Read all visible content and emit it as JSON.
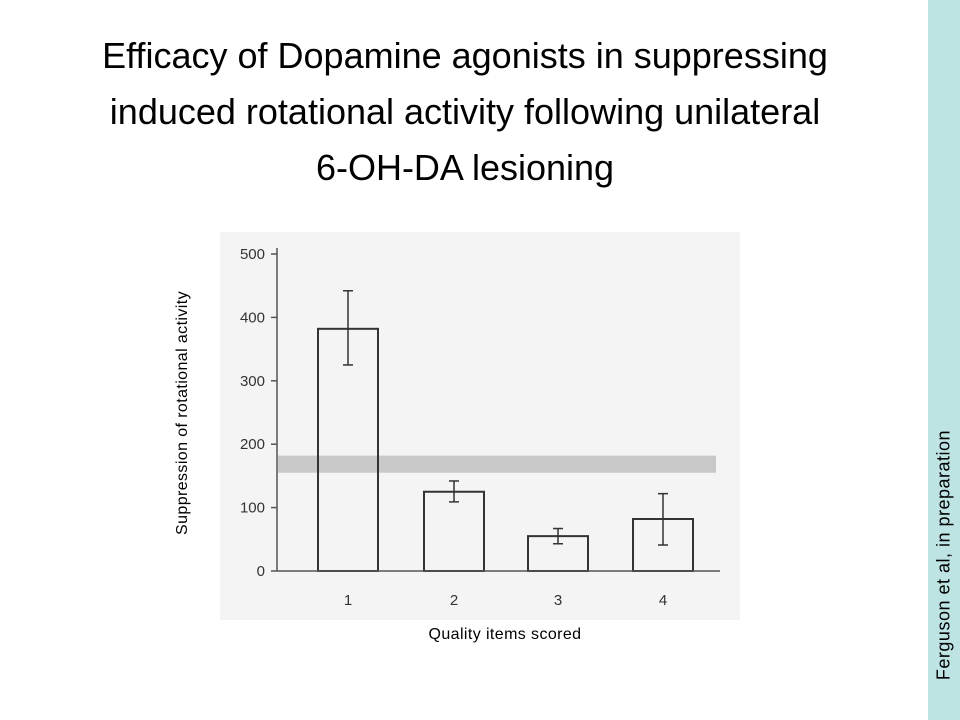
{
  "title_lines": [
    "Efficacy of Dopamine agonists in suppressing",
    "induced rotational activity following unilateral",
    "6-OH-DA lesioning"
  ],
  "side_note": "Ferguson et al, in preparation",
  "colors": {
    "side_band": "#bde3e3",
    "reference_band": "#c8c8c8",
    "bar_fill": "#ffffff",
    "bar_stroke": "#333333",
    "axis": "#555555"
  },
  "chart_data": {
    "type": "bar",
    "categories": [
      "1",
      "2",
      "3",
      "4"
    ],
    "values": [
      382,
      125,
      55,
      82
    ],
    "errors": [
      {
        "low": 325,
        "high": 442
      },
      {
        "low": 109,
        "high": 142
      },
      {
        "low": 43,
        "high": 67
      },
      {
        "low": 41,
        "high": 122
      }
    ],
    "reference_band": [
      155,
      182
    ],
    "yticks": [
      0,
      100,
      200,
      300,
      400,
      500
    ],
    "ylim": [
      0,
      500
    ],
    "xlabel": "Quality items scored",
    "ylabel": "Suppression of rotational activity",
    "grid": false,
    "legend": "none"
  }
}
